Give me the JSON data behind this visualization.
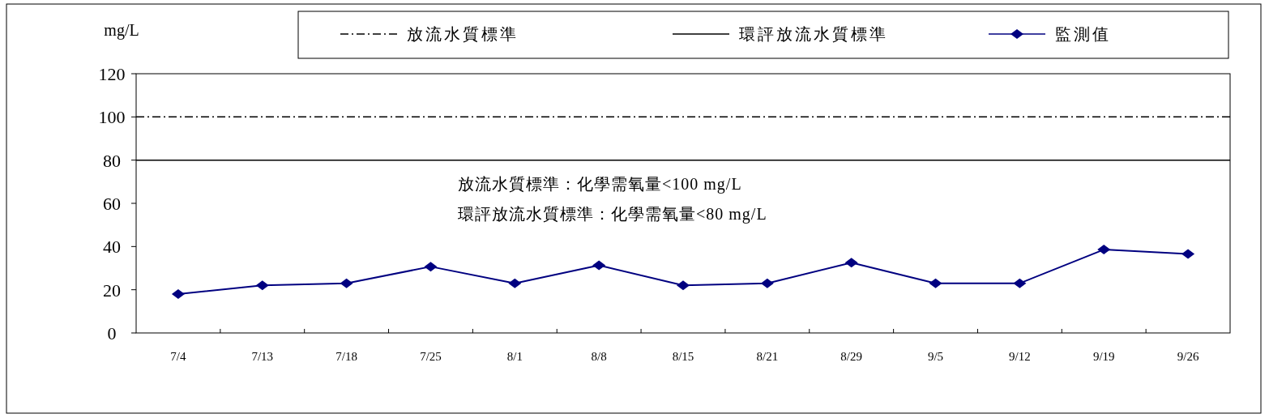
{
  "chart_data": {
    "type": "line",
    "ylabel": "mg/L",
    "categories": [
      "7/4",
      "7/13",
      "7/18",
      "7/25",
      "8/1",
      "8/8",
      "8/15",
      "8/21",
      "8/29",
      "9/5",
      "9/12",
      "9/19",
      "9/26"
    ],
    "series": [
      {
        "name": "監測值",
        "color": "#000080",
        "values": [
          18,
          22,
          23,
          30.7,
          23,
          31.3,
          22,
          23,
          32.5,
          23,
          23,
          38.6,
          36.6
        ]
      }
    ],
    "ref_lines": [
      {
        "axis": "y",
        "value": 100,
        "label": "放流水質標準",
        "color": "#000000",
        "line_style": "dashdot"
      },
      {
        "axis": "y",
        "value": 80,
        "label": "環評放流水質標準",
        "color": "#000000",
        "line_style": "solid"
      }
    ],
    "annotations": [
      "放流水質標準：化學需氧量<100 mg/L",
      "環評放流水質標準：化學需氧量<80 mg/L"
    ],
    "ylim": [
      0,
      120
    ],
    "yticks": [
      0,
      20,
      40,
      60,
      80,
      100,
      120
    ],
    "grid": false,
    "legend": "top",
    "marker": "diamond",
    "line_style": "solid"
  }
}
